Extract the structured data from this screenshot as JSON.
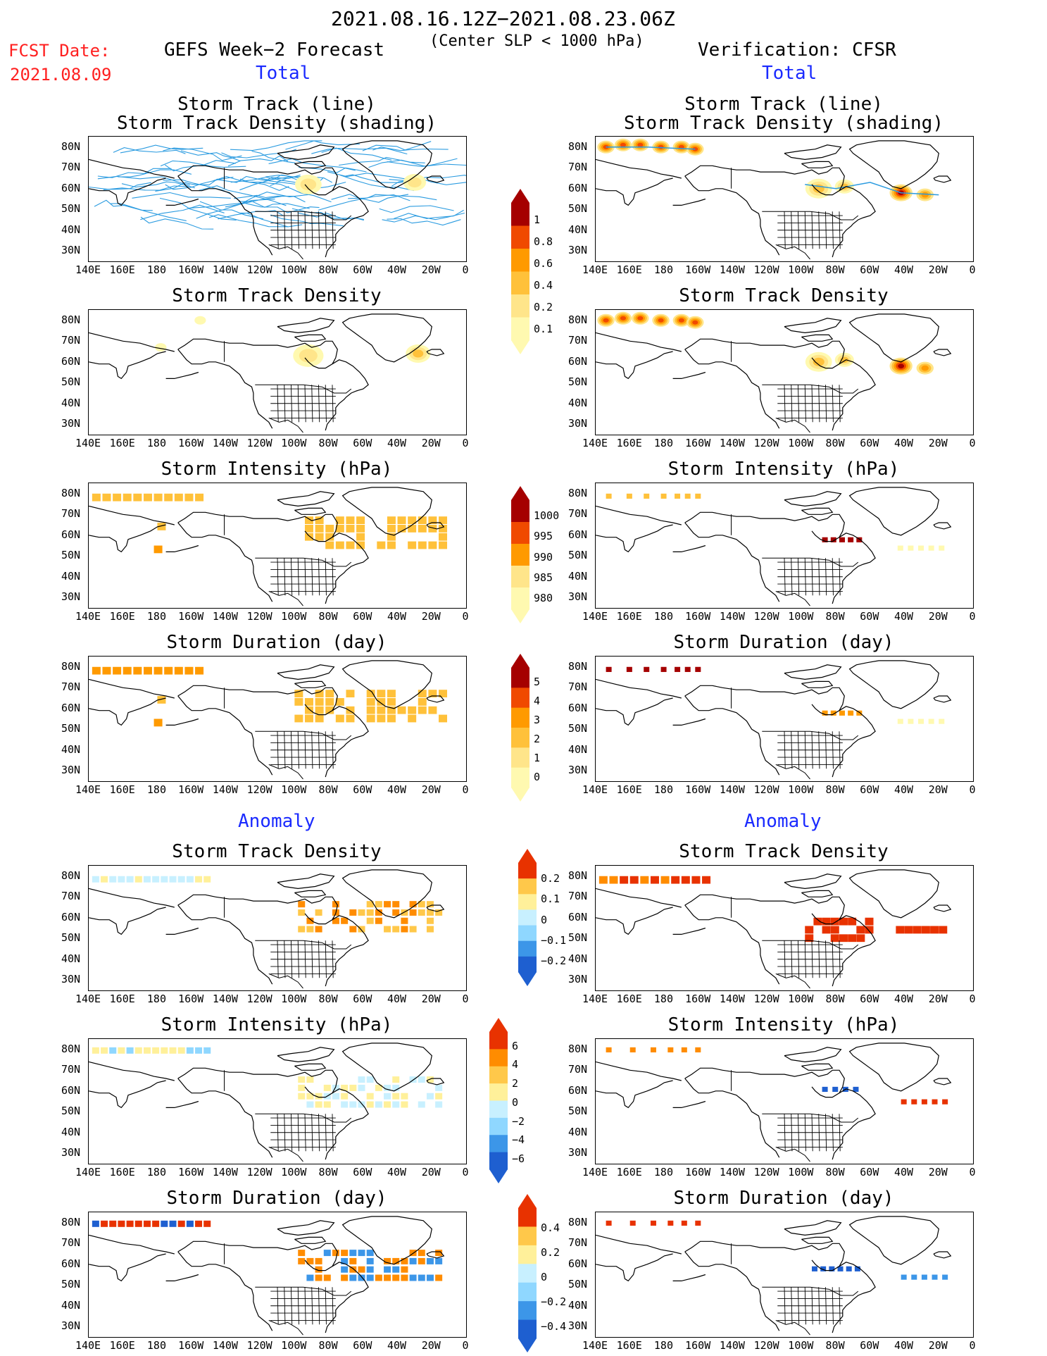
{
  "header": {
    "title": "2021.08.16.12Z−2021.08.23.06Z",
    "subtitle": "(Center SLP < 1000 hPa)",
    "fcst_label": "FCST Date:",
    "fcst_date": "2021.08.09",
    "left_title": "GEFS Week−2 Forecast",
    "right_title": "Verification: CFSR",
    "total": "Total",
    "anomaly": "Anomaly"
  },
  "axes": {
    "y_ticks": [
      "80N",
      "70N",
      "60N",
      "50N",
      "40N",
      "30N"
    ],
    "x_ticks": [
      "140E",
      "160E",
      "180",
      "160W",
      "140W",
      "120W",
      "100W",
      "80W",
      "60W",
      "40W",
      "20W",
      "0"
    ]
  },
  "colors": {
    "track_line": "#2a9be0",
    "land": "#000000",
    "total_scale": [
      "#fff9b0",
      "#ffe58a",
      "#ffc13a",
      "#ff9a00",
      "#f04a00",
      "#a50000"
    ],
    "anom_pos": [
      "#fff09a",
      "#ffc84a",
      "#ff8c00",
      "#e83200"
    ],
    "anom_neg": [
      "#c8f0ff",
      "#8fd7ff",
      "#3c96e8",
      "#1e5fd0"
    ]
  },
  "colorbars": [
    {
      "id": "total1",
      "labels": [
        "1",
        "0.8",
        "0.6",
        "0.4",
        "0.2",
        "0.1"
      ]
    },
    {
      "id": "total2",
      "labels": [
        "1000",
        "995",
        "990",
        "985",
        "980"
      ]
    },
    {
      "id": "total3",
      "labels": [
        "5",
        "4",
        "3",
        "2",
        "1",
        "0"
      ]
    },
    {
      "id": "anom1",
      "labels": [
        "0.2",
        "0.1",
        "0",
        "−0.1",
        "−0.2"
      ]
    },
    {
      "id": "anom2",
      "labels": [
        "6",
        "4",
        "2",
        "0",
        "−2",
        "−4",
        "−6"
      ]
    },
    {
      "id": "anom3",
      "labels": [
        "0.4",
        "0.2",
        "0",
        "−0.2",
        "−0.4"
      ]
    }
  ],
  "panels": {
    "left": [
      {
        "title1": "Storm Track (line)",
        "title2": "Storm Track Density (shading)"
      },
      {
        "title1": "Storm Track Density"
      },
      {
        "title1": "Storm Intensity (hPa)"
      },
      {
        "title1": "Storm Duration (day)"
      },
      {
        "title1": "Storm Track Density"
      },
      {
        "title1": "Storm Intensity (hPa)"
      },
      {
        "title1": "Storm Duration (day)"
      }
    ],
    "right": [
      {
        "title1": "Storm Track (line)",
        "title2": "Storm Track Density (shading)"
      },
      {
        "title1": "Storm Track Density"
      },
      {
        "title1": "Storm Intensity (hPa)"
      },
      {
        "title1": "Storm Duration (day)"
      },
      {
        "title1": "Storm Track Density"
      },
      {
        "title1": "Storm Intensity (hPa)"
      },
      {
        "title1": "Storm Duration (day)"
      }
    ]
  },
  "chart_data": {
    "type": "heatmap",
    "title": "2021.08.16.12Z−2021.08.23.06Z",
    "xlabel": "",
    "ylabel": "",
    "x_range": [
      "140E",
      "0"
    ],
    "y_range": [
      "25N",
      "85N"
    ],
    "panels": [
      "GEFS Week−2 Forecast Total: Storm Track (line) / Storm Track Density (shading)",
      "GEFS Week−2 Forecast Total: Storm Track Density",
      "GEFS Week−2 Forecast Total: Storm Intensity (hPa)",
      "GEFS Week−2 Forecast Total: Storm Duration (day)",
      "GEFS Week−2 Forecast Anomaly: Storm Track Density",
      "GEFS Week−2 Forecast Anomaly: Storm Intensity (hPa)",
      "GEFS Week−2 Forecast Anomaly: Storm Duration (day)",
      "Verification: CFSR Total: Storm Track (line) / Storm Track Density (shading)",
      "Verification: CFSR Total: Storm Track Density",
      "Verification: CFSR Total: Storm Intensity (hPa)",
      "Verification: CFSR Total: Storm Duration (day)",
      "Verification: CFSR Anomaly: Storm Track Density",
      "Verification: CFSR Anomaly: Storm Intensity (hPa)",
      "Verification: CFSR Anomaly: Storm Duration (day)"
    ],
    "colorbar_ranges": {
      "track_density_total": [
        0.1,
        1
      ],
      "intensity_total_hPa": [
        980,
        1000
      ],
      "duration_total_day": [
        0,
        5
      ],
      "track_density_anomaly": [
        -0.2,
        0.2
      ],
      "intensity_anomaly_hPa": [
        -6,
        6
      ],
      "duration_anomaly_day": [
        -0.4,
        0.4
      ]
    }
  }
}
